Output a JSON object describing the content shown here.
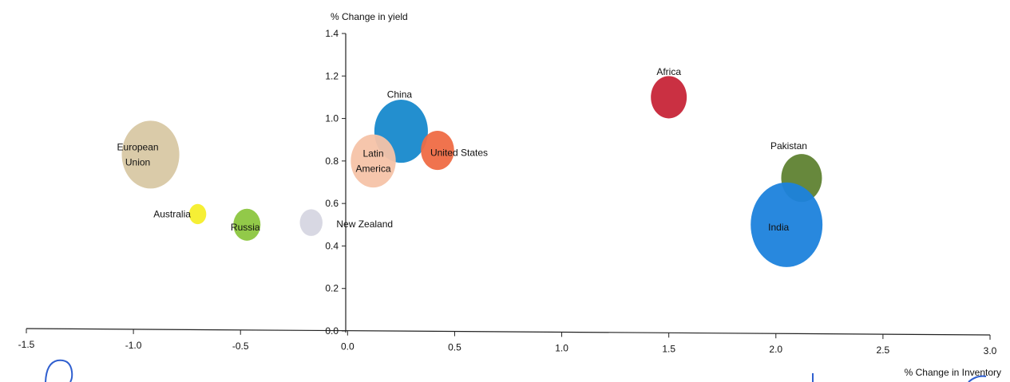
{
  "chart_data": {
    "type": "scatter",
    "subtype": "bubble",
    "xlabel": "% Change in Inventory",
    "ylabel": "% Change in yield",
    "xlim": [
      -1.5,
      3.0
    ],
    "ylim": [
      0.0,
      1.4
    ],
    "x_ticks": [
      -1.5,
      -1.0,
      -0.5,
      0.0,
      0.5,
      1.0,
      1.5,
      2.0,
      2.5,
      3.0
    ],
    "x_tick_labels": [
      "-1.5",
      "-1.0",
      "-0.5",
      "0.0",
      "0.5",
      "1.0",
      "1.5",
      "2.0",
      "2.5",
      "3.0"
    ],
    "y_ticks": [
      0.0,
      0.2,
      0.4,
      0.6,
      0.8,
      1.0,
      1.2,
      1.4
    ],
    "y_tick_labels": [
      "0.0",
      "0.2",
      "0.4",
      "0.6",
      "0.8",
      "1.0",
      "1.2",
      "1.4"
    ],
    "grid": false,
    "points": [
      {
        "label": [
          "European",
          "Union"
        ],
        "x": -0.92,
        "y": 0.83,
        "size": 0.9,
        "color": "#d8c8a4"
      },
      {
        "label": [
          "Australia"
        ],
        "x": -0.7,
        "y": 0.55,
        "size": 0.08,
        "color": "#f5ee2a"
      },
      {
        "label": [
          "Russia"
        ],
        "x": -0.47,
        "y": 0.5,
        "size": 0.2,
        "color": "#8cc63f"
      },
      {
        "label": [
          "New Zealand"
        ],
        "x": -0.17,
        "y": 0.51,
        "size": 0.14,
        "color": "#d6d6e2"
      },
      {
        "label": [
          "China"
        ],
        "x": 0.25,
        "y": 0.94,
        "size": 0.78,
        "color": "#1789cc"
      },
      {
        "label": [
          "Latin",
          "America"
        ],
        "x": 0.12,
        "y": 0.8,
        "size": 0.55,
        "color": "#f6c3a8"
      },
      {
        "label": [
          "United States"
        ],
        "x": 0.42,
        "y": 0.85,
        "size": 0.3,
        "color": "#ef6b45"
      },
      {
        "label": [
          "Africa"
        ],
        "x": 1.5,
        "y": 1.1,
        "size": 0.35,
        "color": "#c72538"
      },
      {
        "label": [
          "Pakistan"
        ],
        "x": 2.12,
        "y": 0.72,
        "size": 0.45,
        "color": "#5f8232"
      },
      {
        "label": [
          "India"
        ],
        "x": 2.05,
        "y": 0.5,
        "size": 1.4,
        "color": "#1c82dc"
      }
    ]
  }
}
